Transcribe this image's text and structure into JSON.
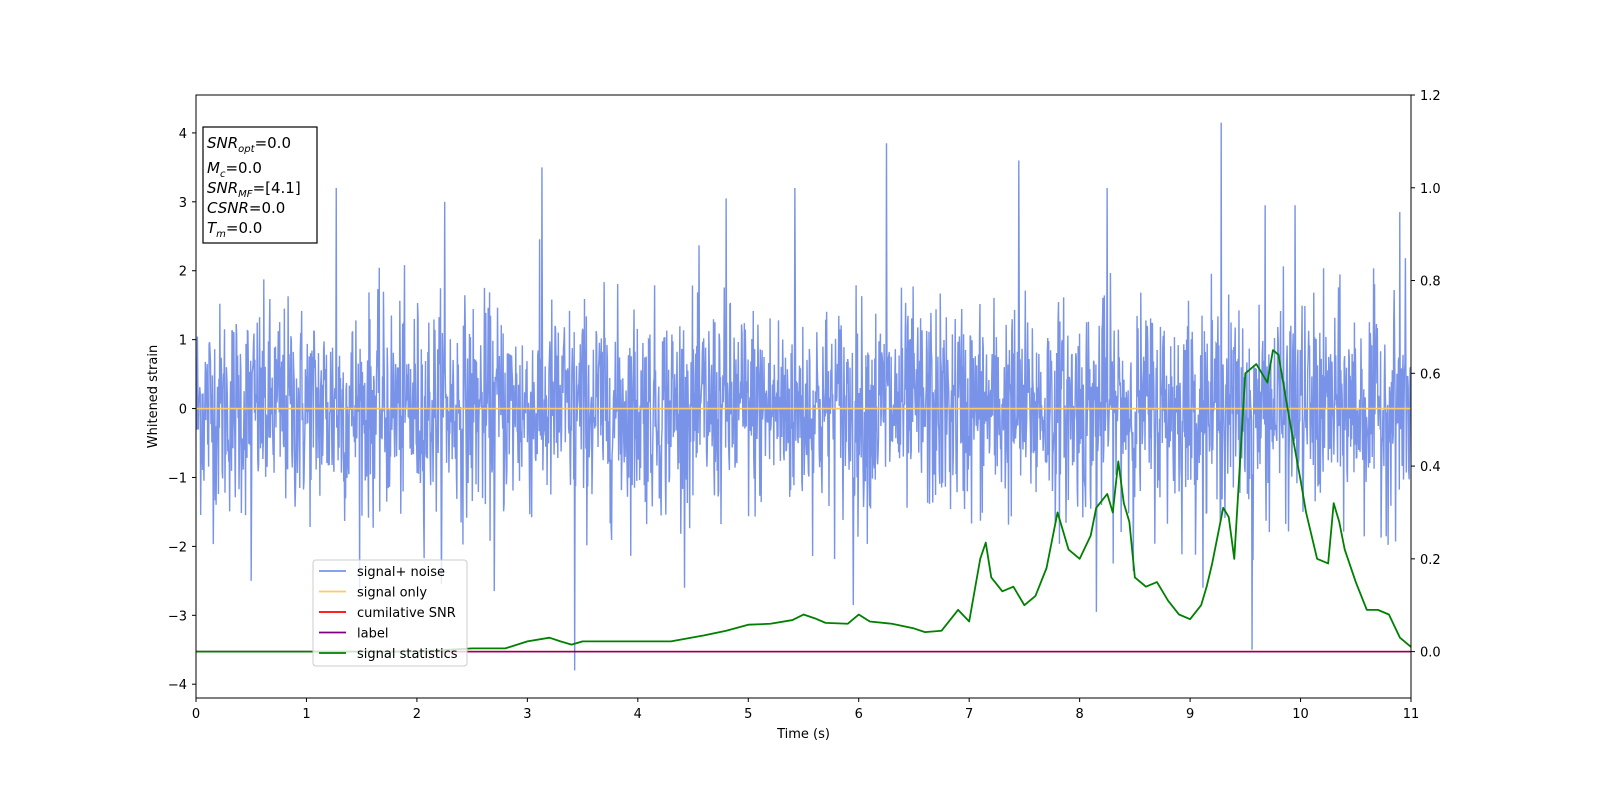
{
  "chart_data": {
    "type": "line",
    "xlabel": "Time (s)",
    "ylabel": "Whitened strain",
    "xlim": [
      0,
      11
    ],
    "ylim": [
      -4.2,
      4.55
    ],
    "y2lim": [
      -0.1,
      1.2
    ],
    "x_ticks": [
      "0",
      "1",
      "2",
      "3",
      "4",
      "5",
      "6",
      "7",
      "8",
      "9",
      "10",
      "11"
    ],
    "y_ticks": [
      "−4",
      "−3",
      "−2",
      "−1",
      "0",
      "1",
      "2",
      "3",
      "4"
    ],
    "y2_ticks": [
      "0.0",
      "0.2",
      "0.4",
      "0.6",
      "0.8",
      "1.0",
      "1.2"
    ],
    "grid": false,
    "legend_position": "lower-left",
    "info_box": [
      {
        "main": "SNR",
        "sub": "opt",
        "rest": "=0.0"
      },
      {
        "main": "M",
        "sub": "c",
        "rest": "=0.0"
      },
      {
        "main": "SNR",
        "sub": "MF",
        "rest": "=[4.1]"
      },
      {
        "main": "CSNR",
        "sub": "",
        "rest": "=0.0"
      },
      {
        "main": "T",
        "sub": "m",
        "rest": "=0.0"
      }
    ],
    "series": [
      {
        "name": "signal+ noise",
        "color": "#7893e8",
        "axis": "left",
        "noise": {
          "points": 2600,
          "approx_sigma": 0.75,
          "approx_range": [
            -3.8,
            4.2
          ]
        },
        "spikes": [
          {
            "x": 3.13,
            "y": 3.5
          },
          {
            "x": 6.25,
            "y": 3.85
          },
          {
            "x": 9.28,
            "y": 4.15
          },
          {
            "x": 7.45,
            "y": 3.6
          },
          {
            "x": 1.27,
            "y": 3.2
          },
          {
            "x": 2.25,
            "y": 3.0
          },
          {
            "x": 4.8,
            "y": 3.05
          },
          {
            "x": 5.42,
            "y": 3.2
          },
          {
            "x": 8.25,
            "y": 3.2
          },
          {
            "x": 9.95,
            "y": 2.95
          },
          {
            "x": 10.9,
            "y": 2.85
          },
          {
            "x": 9.68,
            "y": 2.95
          },
          {
            "x": 3.43,
            "y": -3.8
          },
          {
            "x": 9.56,
            "y": -3.5
          },
          {
            "x": 5.95,
            "y": -2.85
          },
          {
            "x": 8.15,
            "y": -2.95
          },
          {
            "x": 2.7,
            "y": -2.65
          },
          {
            "x": 0.5,
            "y": -2.5
          }
        ]
      },
      {
        "name": "signal only",
        "color": "#ffc966",
        "axis": "left",
        "x": [
          0,
          11
        ],
        "y": [
          0,
          0
        ]
      },
      {
        "name": "cumilative SNR",
        "color": "#ff0000",
        "axis": "right",
        "x": [
          0,
          11
        ],
        "y": [
          0,
          0
        ]
      },
      {
        "name": "label",
        "color": "#800080",
        "axis": "right",
        "x": [
          0,
          11
        ],
        "y": [
          0,
          0
        ]
      },
      {
        "name": "signal statistics",
        "color": "#008000",
        "axis": "right",
        "x": [
          0,
          0.5,
          1.0,
          1.5,
          2.0,
          2.5,
          2.8,
          3.0,
          3.2,
          3.3,
          3.4,
          3.5,
          3.7,
          4.0,
          4.3,
          4.6,
          4.8,
          5.0,
          5.2,
          5.4,
          5.5,
          5.6,
          5.7,
          5.9,
          6.0,
          6.1,
          6.3,
          6.5,
          6.6,
          6.75,
          6.85,
          6.9,
          7.0,
          7.1,
          7.15,
          7.2,
          7.3,
          7.4,
          7.5,
          7.6,
          7.7,
          7.8,
          7.9,
          8.0,
          8.1,
          8.15,
          8.25,
          8.3,
          8.35,
          8.4,
          8.45,
          8.5,
          8.6,
          8.7,
          8.8,
          8.9,
          9.0,
          9.1,
          9.15,
          9.2,
          9.3,
          9.35,
          9.4,
          9.5,
          9.6,
          9.7,
          9.75,
          9.8,
          9.9,
          10.0,
          10.05,
          10.15,
          10.25,
          10.3,
          10.35,
          10.4,
          10.5,
          10.6,
          10.7,
          10.8,
          10.9,
          11.0
        ],
        "y": [
          0.0,
          0.0,
          0.0,
          0.0,
          0.0,
          0.007,
          0.007,
          0.022,
          0.03,
          0.022,
          0.015,
          0.022,
          0.022,
          0.022,
          0.022,
          0.035,
          0.045,
          0.058,
          0.06,
          0.068,
          0.08,
          0.072,
          0.062,
          0.06,
          0.08,
          0.065,
          0.06,
          0.05,
          0.042,
          0.045,
          0.075,
          0.09,
          0.065,
          0.2,
          0.235,
          0.16,
          0.13,
          0.14,
          0.1,
          0.12,
          0.18,
          0.3,
          0.22,
          0.2,
          0.25,
          0.31,
          0.34,
          0.3,
          0.41,
          0.32,
          0.28,
          0.16,
          0.14,
          0.15,
          0.11,
          0.08,
          0.07,
          0.1,
          0.14,
          0.19,
          0.31,
          0.29,
          0.2,
          0.6,
          0.62,
          0.58,
          0.65,
          0.64,
          0.5,
          0.37,
          0.3,
          0.2,
          0.19,
          0.32,
          0.28,
          0.22,
          0.15,
          0.09,
          0.09,
          0.08,
          0.03,
          0.01
        ]
      }
    ]
  }
}
